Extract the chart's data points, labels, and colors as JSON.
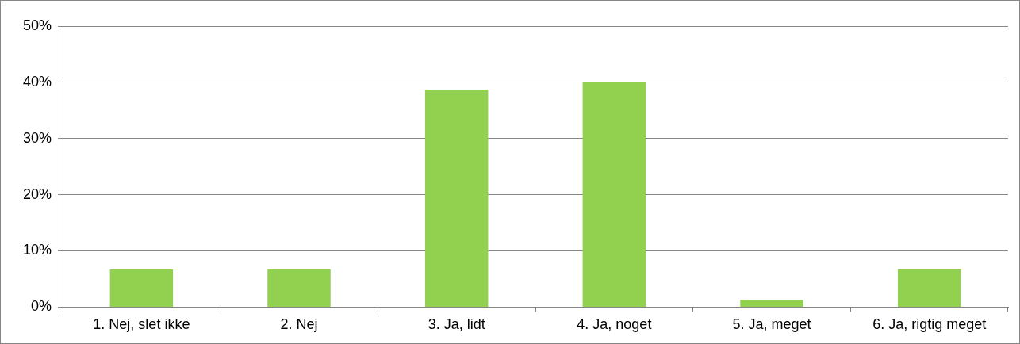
{
  "chart_data": {
    "type": "bar",
    "categories": [
      "1. Nej, slet ikke",
      "2. Nej",
      "3. Ja, lidt",
      "4. Ja, noget",
      "5. Ja, meget",
      "6. Ja, rigtig meget"
    ],
    "values": [
      6.7,
      6.7,
      38.7,
      40,
      1.3,
      6.7
    ],
    "color": "#92d050",
    "ylim": [
      0,
      50
    ],
    "yticks": [
      {
        "value": 0,
        "label": "0%"
      },
      {
        "value": 10,
        "label": "10%"
      },
      {
        "value": 20,
        "label": "20%"
      },
      {
        "value": 30,
        "label": "30%"
      },
      {
        "value": 40,
        "label": "40%"
      },
      {
        "value": 50,
        "label": "50%"
      }
    ],
    "grid": "y"
  }
}
